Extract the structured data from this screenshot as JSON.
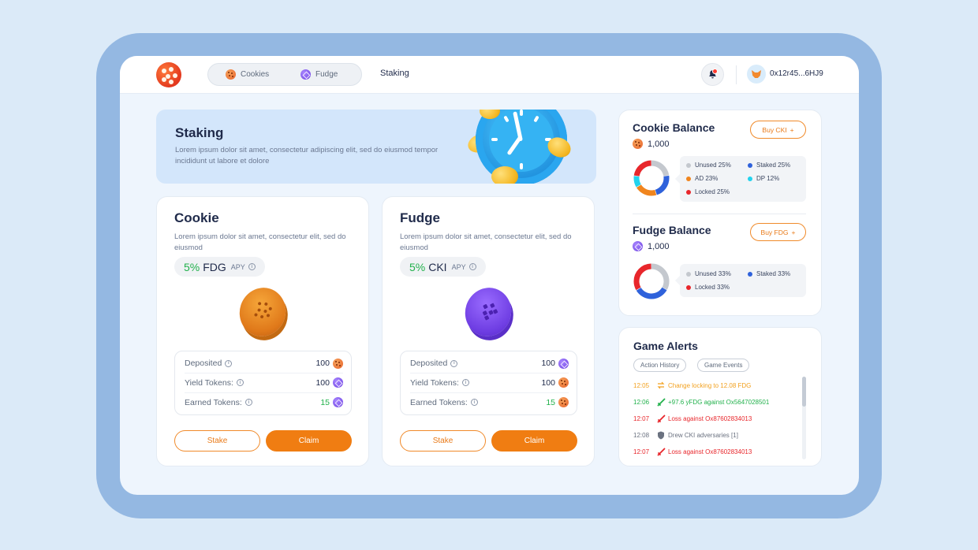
{
  "nav": {
    "tabs": [
      {
        "label": "Cookies",
        "icon": "cookie-coin-icon"
      },
      {
        "label": "Fudge",
        "icon": "fudge-coin-icon"
      }
    ],
    "link": "Staking",
    "notification_count": "",
    "wallet_address": "0x12r45...6HJ9"
  },
  "banner": {
    "title": "Staking",
    "text": "Lorem ipsum dolor sit amet, consectetur adipiscing elit, sed do eiusmod tempor incididunt ut labore et dolore"
  },
  "cards": [
    {
      "title": "Cookie",
      "desc": "Lorem ipsum dolor sit amet, consectetur elit, sed do eiusmod",
      "apy_pct": "5%",
      "apy_token": "FDG",
      "apy_label": "APY",
      "rows": [
        {
          "label": "Deposited",
          "value": "100",
          "token": "cookie"
        },
        {
          "label": "Yield Tokens:",
          "value": "100",
          "token": "fudge"
        },
        {
          "label": "Earned Tokens:",
          "value": "15",
          "token": "fudge"
        }
      ],
      "stake_label": "Stake",
      "claim_label": "Claim"
    },
    {
      "title": "Fudge",
      "desc": "Lorem ipsum dolor sit amet, consectetur elit, sed do eiusmod",
      "apy_pct": "5%",
      "apy_token": "CKI",
      "apy_label": "APY",
      "rows": [
        {
          "label": "Deposited",
          "value": "100",
          "token": "fudge"
        },
        {
          "label": "Yield Tokens:",
          "value": "100",
          "token": "cookie"
        },
        {
          "label": "Earned Tokens:",
          "value": "15",
          "token": "cookie"
        }
      ],
      "stake_label": "Stake",
      "claim_label": "Claim"
    }
  ],
  "balances": {
    "cookie": {
      "title": "Cookie Balance",
      "amount": "1,000",
      "buy_label": "Buy CKI",
      "segments": [
        {
          "label": "Unused 25%",
          "value": 25,
          "color": "#c4c8ce"
        },
        {
          "label": "Staked 25%",
          "value": 25,
          "color": "#2f62db"
        },
        {
          "label": "AD 23%",
          "value": 23,
          "color": "#f0851e"
        },
        {
          "label": "DP 12%",
          "value": 12,
          "color": "#22d3ee"
        },
        {
          "label": "Locked 25%",
          "value": 25,
          "color": "#e8262b"
        }
      ]
    },
    "fudge": {
      "title": "Fudge Balance",
      "amount": "1,000",
      "buy_label": "Buy FDG",
      "segments": [
        {
          "label": "Unused 33%",
          "value": 33,
          "color": "#c4c8ce"
        },
        {
          "label": "Staked 33%",
          "value": 33,
          "color": "#2f62db"
        },
        {
          "label": "Locked 33%",
          "value": 33,
          "color": "#e8262b"
        }
      ]
    }
  },
  "alerts": {
    "title": "Game Alerts",
    "tabs": [
      "Action History",
      "Game Events"
    ],
    "items": [
      {
        "time": "12:05",
        "text": "Change locking to 12.08 FDG",
        "color": "#f2a11f",
        "icon": "swap-icon"
      },
      {
        "time": "12:06",
        "text": "+97.6 yFDG against Ox5647028501",
        "color": "#22b14c",
        "icon": "sword-win-icon"
      },
      {
        "time": "12:07",
        "text": "Loss against Ox87602834013",
        "color": "#e8262b",
        "icon": "sword-loss-icon"
      },
      {
        "time": "12:08",
        "text": "Drew CKI adversaries [1]",
        "color": "#6b7280",
        "icon": "shield-icon"
      },
      {
        "time": "12:07",
        "text": "Loss against Ox87602834013",
        "color": "#e8262b",
        "icon": "sword-loss-icon"
      }
    ]
  }
}
